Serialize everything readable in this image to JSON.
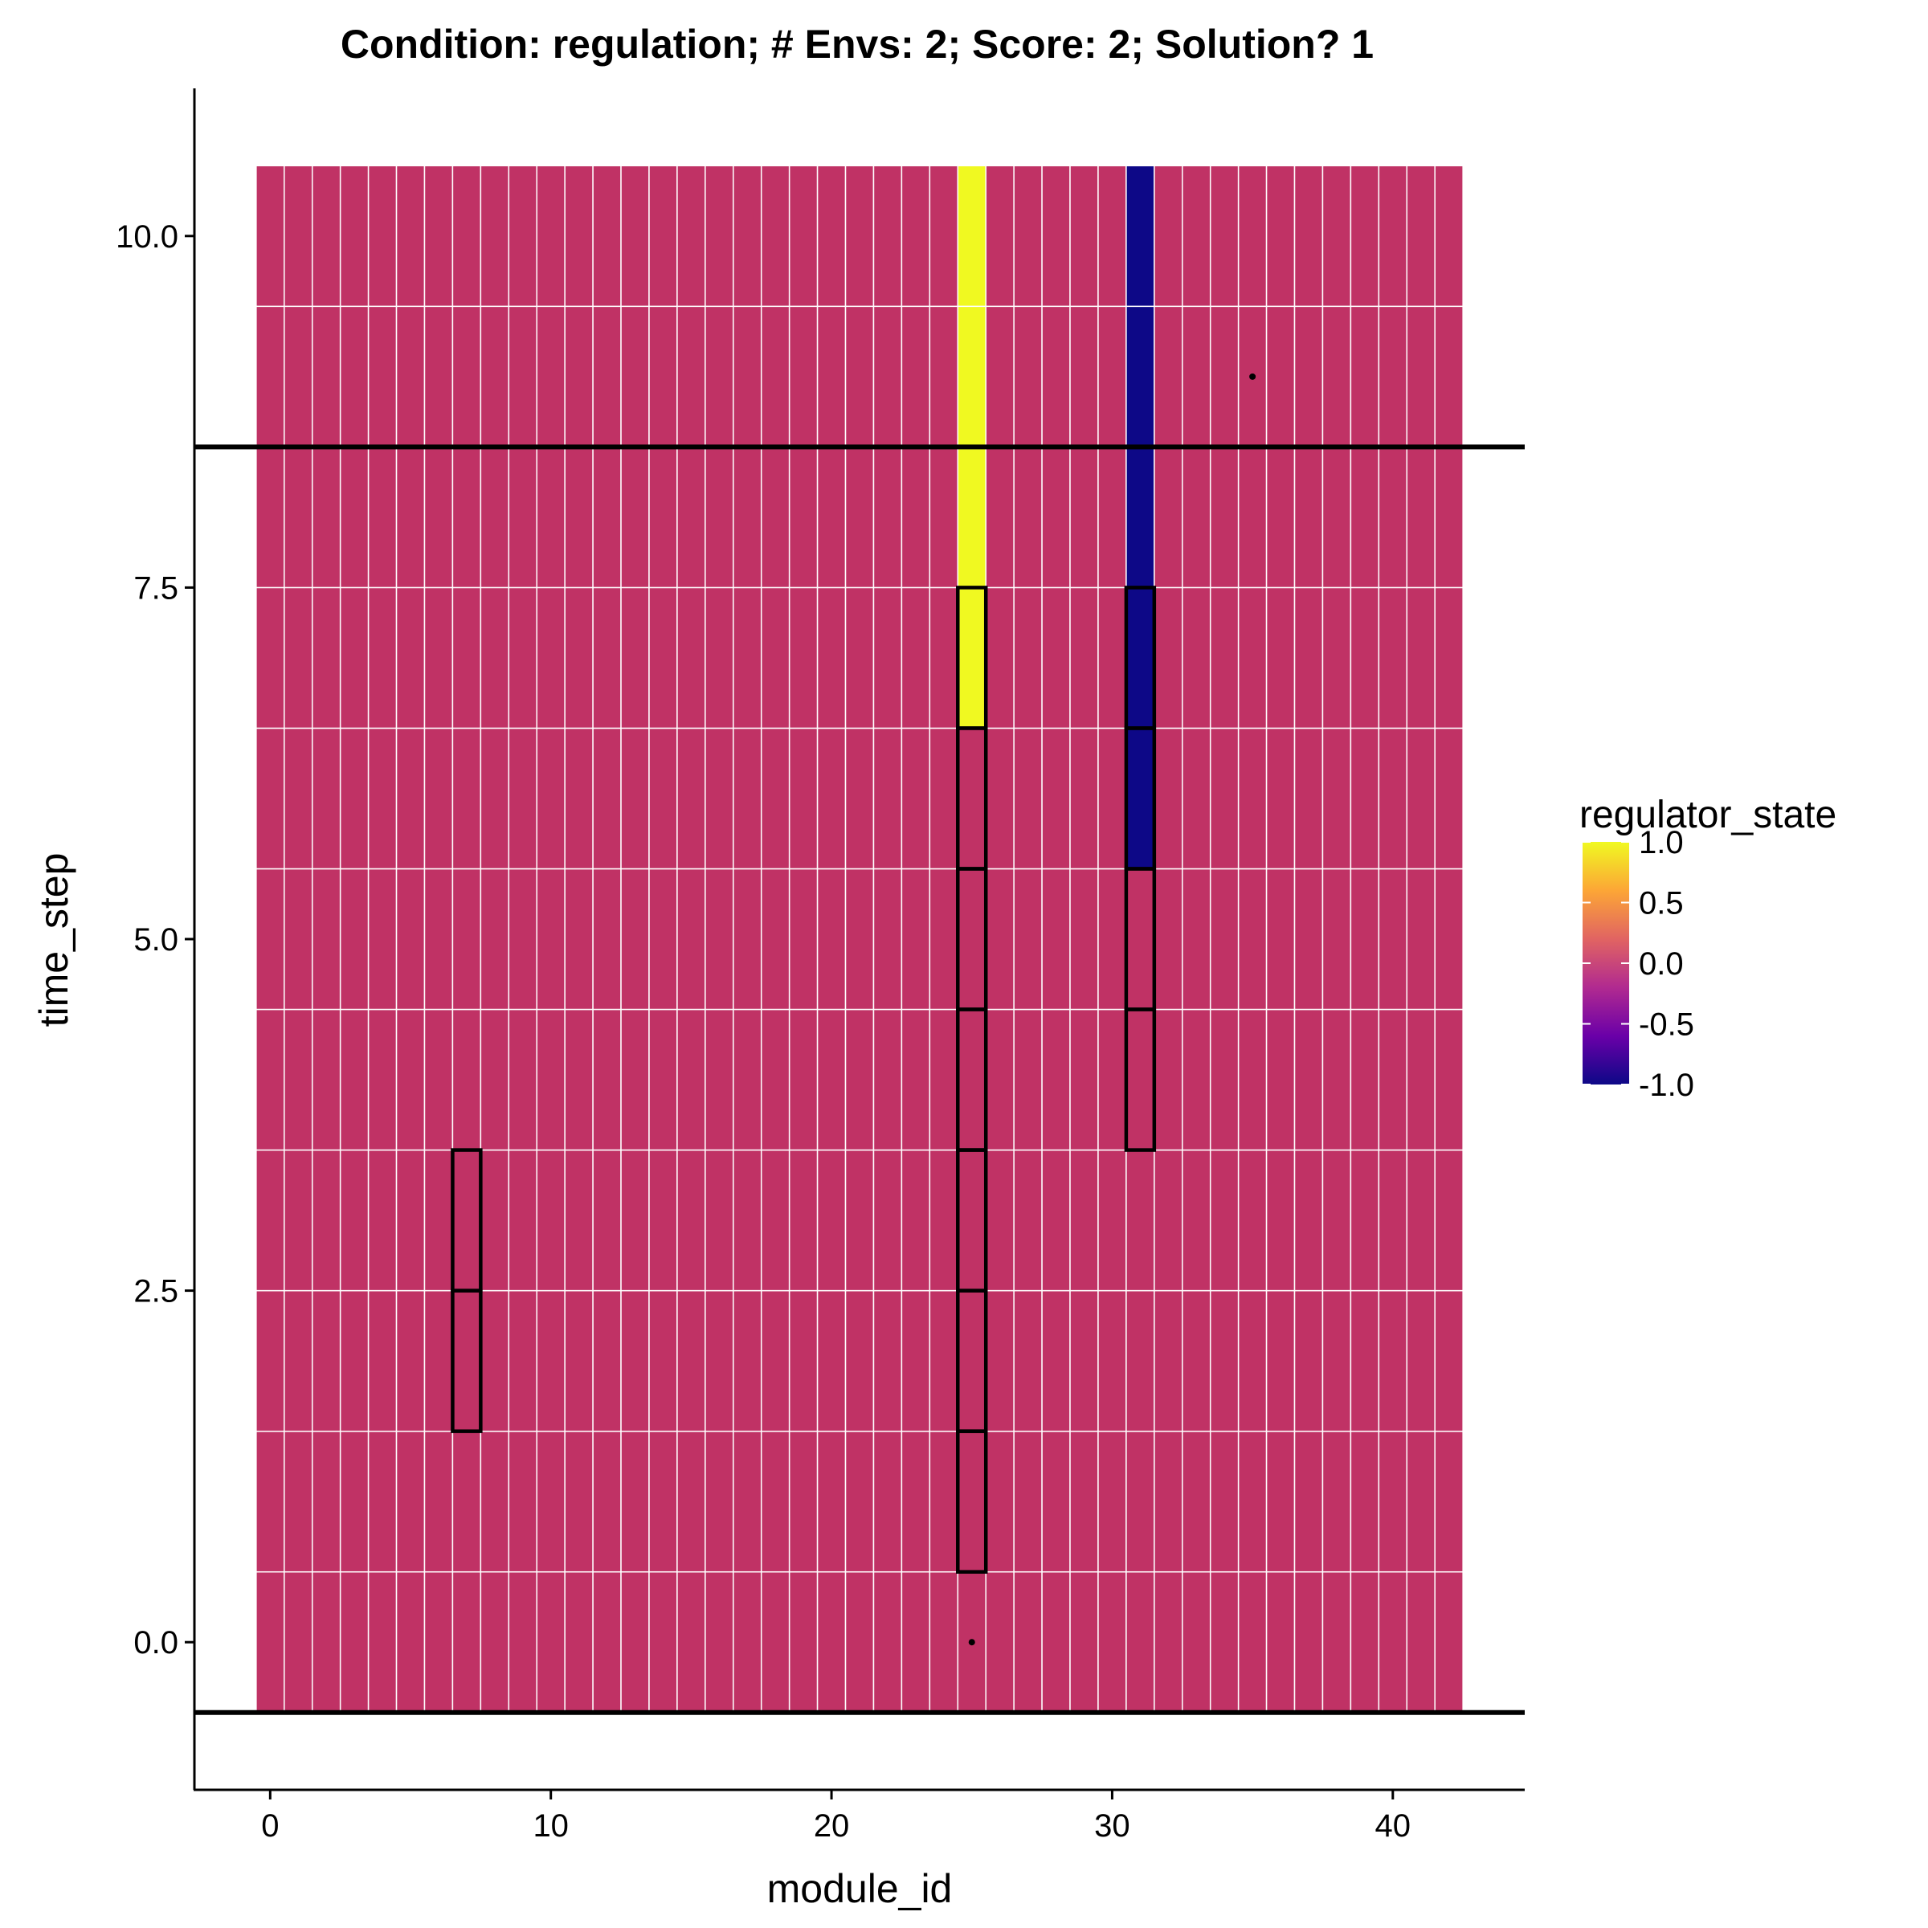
{
  "chart_data": {
    "type": "heatmap",
    "title": "Condition: regulation; # Envs: 2; Score: 2; Solution? 1",
    "xlabel": "module_id",
    "ylabel": "time_step",
    "xlim": [
      -2.7,
      44.7
    ],
    "ylim": [
      -1.05,
      11.05
    ],
    "x_ticks": [
      0,
      10,
      20,
      30,
      40
    ],
    "x_tick_labels": [
      "0",
      "10",
      "20",
      "30",
      "40"
    ],
    "y_ticks": [
      0,
      2.5,
      5,
      7.5,
      10
    ],
    "y_tick_labels": [
      "0.0",
      "2.5",
      "5.0",
      "7.5",
      "10.0"
    ],
    "grid": {
      "module_id_range": [
        0,
        42
      ],
      "time_step_range": [
        0,
        10
      ],
      "default_value": 0
    },
    "nonzero_cells": [
      {
        "module_id": 25,
        "time_steps": [
          7,
          8,
          9,
          10
        ],
        "value": 1.0
      },
      {
        "module_id": 31,
        "time_steps": [
          6,
          7,
          8,
          9,
          10
        ],
        "value": -1.0
      }
    ],
    "outlined_cells": [
      {
        "module_id": 7,
        "time_steps": [
          2,
          3
        ]
      },
      {
        "module_id": 25,
        "time_steps": [
          1,
          2,
          3,
          4,
          5,
          6,
          7
        ]
      },
      {
        "module_id": 31,
        "time_steps": [
          4,
          5,
          6,
          7
        ]
      }
    ],
    "horizontal_lines": [
      -0.5,
      8.5
    ],
    "points": [
      {
        "module_id": 25,
        "time_step": 0
      },
      {
        "module_id": 35,
        "time_step": 9
      }
    ],
    "legend": {
      "title": "regulator_state",
      "placement": "right",
      "breaks": [
        1.0,
        0.5,
        0.0,
        -0.5,
        -1.0
      ],
      "break_labels": [
        "1.0",
        "0.5",
        "0.0",
        "-0.5",
        "-1.0"
      ],
      "range": [
        -1.0,
        1.0
      ]
    },
    "palette": [
      "#0d0887",
      "#6a00a8",
      "#b12a90",
      "#e16462",
      "#fca636",
      "#f0f921"
    ],
    "cell_color": "#c03265",
    "cell_border_color": "#ffffff"
  }
}
